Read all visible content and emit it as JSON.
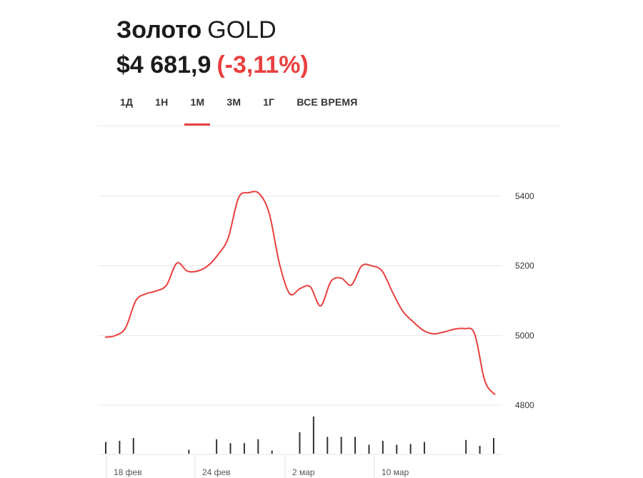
{
  "header": {
    "name": "Золото",
    "ticker": "GOLD",
    "price": "$4 681,9",
    "change": "(-3,11%)"
  },
  "tabs": [
    {
      "label": "1Д",
      "active": false
    },
    {
      "label": "1Н",
      "active": false
    },
    {
      "label": "1М",
      "active": true
    },
    {
      "label": "3М",
      "active": false
    },
    {
      "label": "1Г",
      "active": false
    },
    {
      "label": "ВСЕ ВРЕМЯ",
      "active": false
    }
  ],
  "colors": {
    "accent": "#e8403f",
    "line": "#e8403f",
    "grid": "#e6e6e6",
    "volume": "#333333"
  },
  "chart_data": [
    {
      "type": "line",
      "y_ticks": [
        "5400",
        "5200",
        "5000",
        "4800"
      ],
      "ylim": [
        4800,
        5400
      ],
      "x_ticks": [
        "18 фев",
        "24 фев",
        "2 мар",
        "10 мар"
      ],
      "grid": true,
      "axis_position": "right",
      "series": [
        {
          "points": [
            [
              0,
              4995
            ],
            [
              1,
              5000
            ],
            [
              2,
              5022
            ],
            [
              3,
              5100
            ],
            [
              4,
              5120
            ],
            [
              5,
              5128
            ],
            [
              6,
              5145
            ],
            [
              7,
              5208
            ],
            [
              8,
              5185
            ],
            [
              9,
              5185
            ],
            [
              10,
              5200
            ],
            [
              11,
              5232
            ],
            [
              12,
              5280
            ],
            [
              13,
              5395
            ],
            [
              14,
              5410
            ],
            [
              15,
              5408
            ],
            [
              16,
              5350
            ],
            [
              17,
              5205
            ],
            [
              18,
              5120
            ],
            [
              19,
              5135
            ],
            [
              20,
              5140
            ],
            [
              21,
              5085
            ],
            [
              22,
              5155
            ],
            [
              23,
              5165
            ],
            [
              24,
              5145
            ],
            [
              25,
              5200
            ],
            [
              26,
              5200
            ],
            [
              27,
              5185
            ],
            [
              28,
              5125
            ],
            [
              29,
              5070
            ],
            [
              30,
              5040
            ],
            [
              31,
              5015
            ],
            [
              32,
              5005
            ],
            [
              33,
              5010
            ],
            [
              34,
              5018
            ],
            [
              35,
              5020
            ],
            [
              36,
              5005
            ],
            [
              37,
              4870
            ],
            [
              38,
              4830
            ]
          ]
        }
      ]
    },
    {
      "type": "bar",
      "name": "volume",
      "values": [
        0.3,
        0.33,
        0.4,
        0,
        0,
        0,
        0.1,
        0,
        0.37,
        0.27,
        0.27,
        0.37,
        0.08,
        0,
        0.55,
        0.95,
        0.43,
        0.43,
        0.43,
        0.23,
        0.33,
        0.23,
        0.25,
        0.3,
        0,
        0,
        0.35,
        0.2,
        0.4
      ]
    }
  ]
}
